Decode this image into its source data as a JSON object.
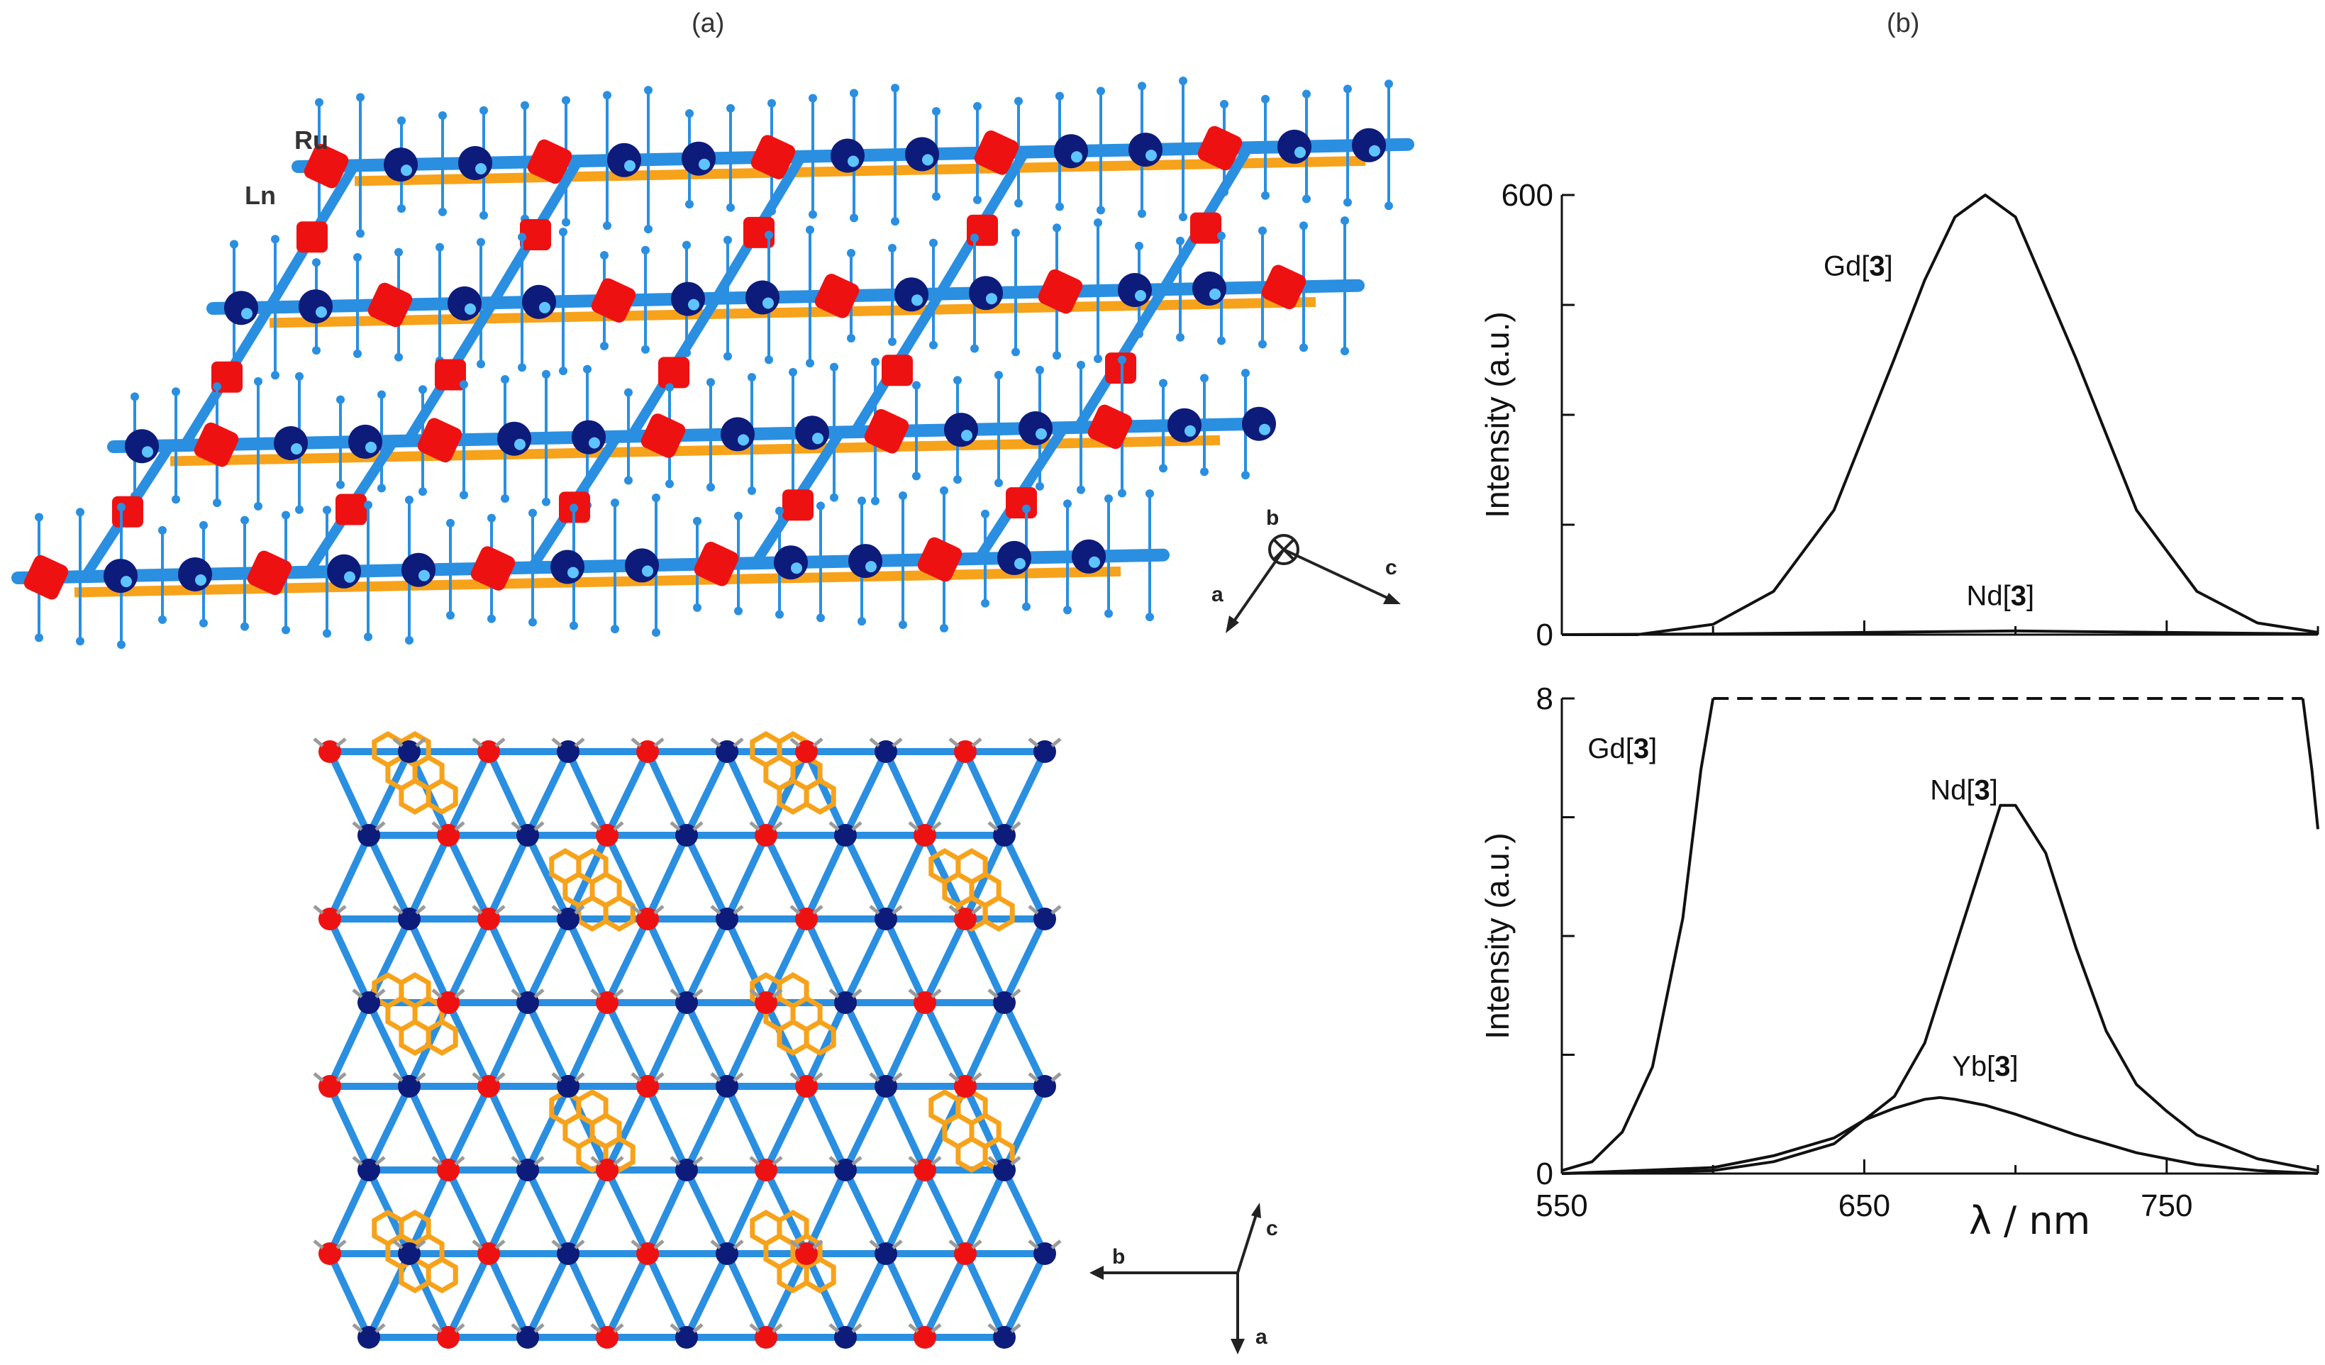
{
  "panels": {
    "a": "(a)",
    "b": "(b)"
  },
  "structure": {
    "atom_labels": {
      "ru": "Ru",
      "ln": "Ln"
    },
    "top_axes": {
      "a": "a",
      "b": "b",
      "c": "c"
    },
    "bottom_axes": {
      "a": "a",
      "b": "b",
      "c": "c"
    },
    "colors": {
      "ru": "#0d1b7a",
      "ln": "#ee1111",
      "linker": "#2a8fe0",
      "pyrene": "#f7a21b",
      "pyrene_dark": "#e0690a",
      "terminal": "#9a9a9a"
    }
  },
  "chart_data": [
    {
      "type": "line",
      "ylabel": "Intensity (a.u.)",
      "xlim": [
        550,
        800
      ],
      "ylim": [
        0,
        600
      ],
      "yticks": [
        0,
        600
      ],
      "series": [
        {
          "name": "Gd[3]",
          "x": [
            550,
            575,
            600,
            620,
            640,
            660,
            670,
            680,
            690,
            700,
            720,
            740,
            760,
            780,
            800
          ],
          "y": [
            0,
            0,
            14,
            59,
            170,
            377,
            484,
            570,
            600,
            570,
            377,
            170,
            59,
            16,
            3
          ]
        },
        {
          "name": "Nd[3]",
          "x": [
            550,
            600,
            650,
            700,
            750,
            800
          ],
          "y": [
            0,
            1,
            3,
            5,
            3,
            1
          ]
        }
      ],
      "annotations": [
        {
          "text": "Gd",
          "bold": "3",
          "x": 648,
          "y": 490
        },
        {
          "text": "Nd",
          "bold": "3",
          "x": 695,
          "y": 40
        }
      ]
    },
    {
      "type": "line",
      "xlabel": "λ / nm",
      "ylabel": "Intensity (a.u.)",
      "xlim": [
        550,
        800
      ],
      "ylim": [
        0,
        8
      ],
      "yticks": [
        0,
        8
      ],
      "xticks": [
        550,
        650,
        750
      ],
      "series": [
        {
          "name": "Gd[3]",
          "style": "solid",
          "x": [
            550,
            560,
            570,
            580,
            590,
            596,
            600
          ],
          "y": [
            0.05,
            0.2,
            0.7,
            1.8,
            4.3,
            6.8,
            8
          ]
        },
        {
          "name": "Gd[3]",
          "style": "dashed",
          "x": [
            600,
            795
          ],
          "y": [
            8,
            8
          ]
        },
        {
          "name": "Gd[3]",
          "style": "solid",
          "x": [
            795,
            798,
            800
          ],
          "y": [
            8,
            6.8,
            5.8
          ]
        },
        {
          "name": "Nd[3]",
          "style": "solid",
          "x": [
            550,
            600,
            620,
            640,
            660,
            670,
            680,
            690,
            695,
            700,
            710,
            720,
            730,
            740,
            750,
            760,
            780,
            800
          ],
          "y": [
            0,
            0.05,
            0.2,
            0.5,
            1.3,
            2.2,
            3.8,
            5.4,
            6.2,
            6.2,
            5.4,
            3.8,
            2.4,
            1.5,
            1.05,
            0.65,
            0.25,
            0.05
          ]
        },
        {
          "name": "Yb[3]",
          "style": "solid",
          "x": [
            550,
            600,
            620,
            640,
            650,
            660,
            670,
            675,
            680,
            690,
            700,
            720,
            740,
            760,
            780,
            800
          ],
          "y": [
            0,
            0.1,
            0.3,
            0.6,
            0.9,
            1.1,
            1.25,
            1.28,
            1.25,
            1.15,
            1.0,
            0.65,
            0.35,
            0.15,
            0.05,
            0
          ]
        }
      ],
      "annotations": [
        {
          "text": "Gd",
          "bold": "3",
          "x": 570,
          "y": 7.0
        },
        {
          "text": "Nd",
          "bold": "3",
          "x": 683,
          "y": 6.3
        },
        {
          "text": "Yb",
          "bold": "3",
          "x": 690,
          "y": 1.65
        }
      ]
    }
  ]
}
